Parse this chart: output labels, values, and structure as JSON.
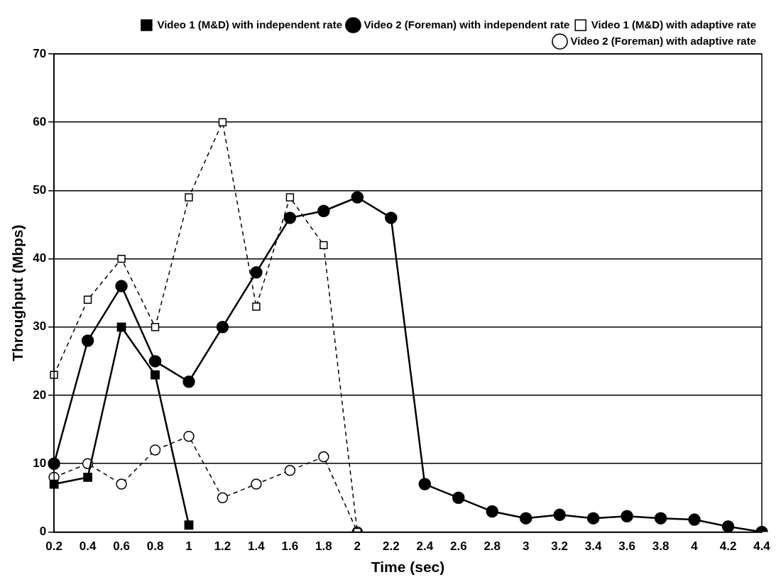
{
  "chart_data": {
    "type": "line",
    "xlabel": "Time (sec)",
    "ylabel": "Throughput (Mbps)",
    "categories": [
      "0.2",
      "0.4",
      "0.6",
      "0.8",
      "1",
      "1.2",
      "1.4",
      "1.6",
      "1.8",
      "2",
      "2.2",
      "2.4",
      "2.6",
      "2.8",
      "3",
      "3.2",
      "3.4",
      "3.6",
      "3.8",
      "4",
      "4.2",
      "4.4"
    ],
    "ylim": [
      0,
      70
    ],
    "yticks": [
      0,
      10,
      20,
      30,
      40,
      50,
      60,
      70
    ],
    "grid": "y",
    "legend": "top right",
    "series": [
      {
        "name": "Video 1 (M&D) with independent rate",
        "color": "#000000",
        "marker": "square",
        "line_style": "solid",
        "values": [
          7,
          8,
          30,
          23,
          1,
          null,
          null,
          null,
          null,
          null,
          null,
          null,
          null,
          null,
          null,
          null,
          null,
          null,
          null,
          null,
          null,
          null
        ]
      },
      {
        "name": "Video 2 (Foreman) with independent rate",
        "color": "#000000",
        "marker": "circle",
        "line_style": "solid",
        "values": [
          10,
          28,
          36,
          25,
          22,
          30,
          38,
          46,
          47,
          49,
          46,
          7,
          5,
          3,
          2,
          2.5,
          2,
          2.3,
          2,
          1.8,
          0.8,
          0
        ]
      },
      {
        "name": "Video 1 (M&D) with adaptive rate",
        "color": "#000000",
        "marker": "square",
        "line_style": "dashed",
        "values": [
          23,
          34,
          40,
          30,
          49,
          60,
          33,
          49,
          42,
          0,
          null,
          null,
          null,
          null,
          null,
          null,
          null,
          null,
          null,
          null,
          null,
          null
        ]
      },
      {
        "name": "Video 2 (Foreman) with adaptive rate",
        "color": "#000000",
        "marker": "circle",
        "line_style": "dashed",
        "values": [
          8,
          10,
          7,
          12,
          14,
          5,
          7,
          9,
          11,
          0,
          null,
          null,
          null,
          null,
          null,
          null,
          null,
          null,
          null,
          null,
          null,
          null
        ]
      }
    ]
  }
}
